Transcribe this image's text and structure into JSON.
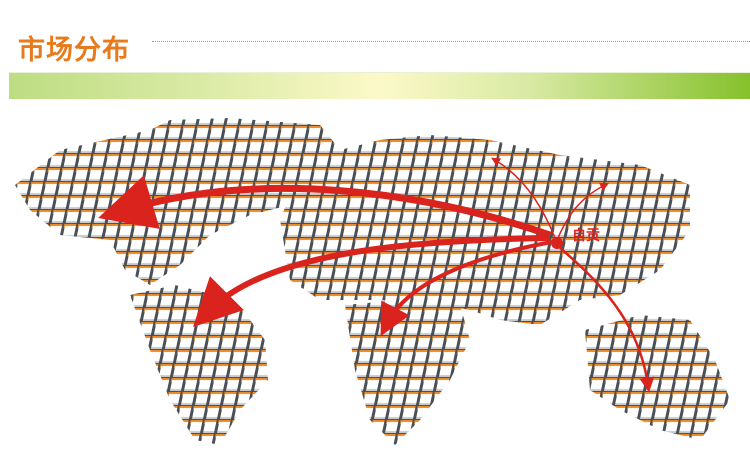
{
  "header": {
    "title": "市场分布"
  },
  "map": {
    "origin_label": "自贡",
    "colors": {
      "title": "#e87a1c",
      "arrow": "#d9231c",
      "tile_orange": "#ec8a2a",
      "tile_gray": "#4a4f55",
      "tile_white": "#ffffff"
    },
    "destinations": [
      "north-america",
      "south-america",
      "africa",
      "north-asia",
      "east-asia",
      "australia"
    ]
  }
}
